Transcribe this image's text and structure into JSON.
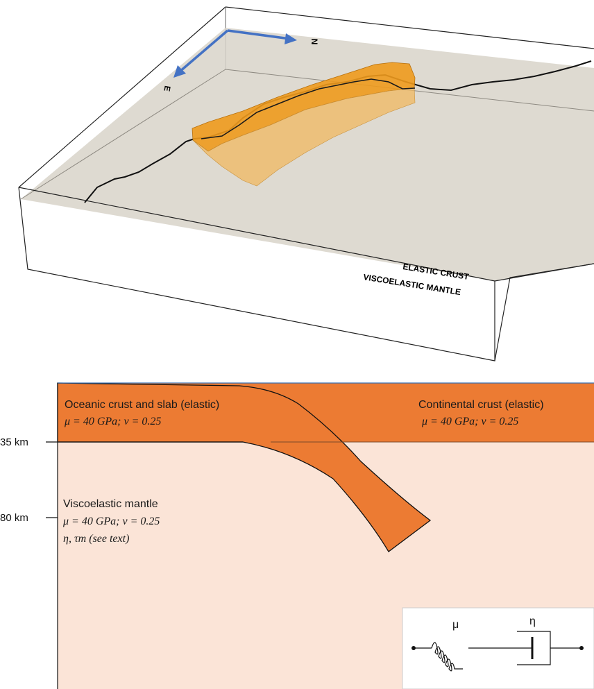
{
  "top_panel": {
    "axis_north": "N",
    "axis_east": "E",
    "layer_upper": "ELASTIC CRUST",
    "layer_lower": "VISCOELASTIC MANTLE"
  },
  "bottom_panel": {
    "oceanic": {
      "title": "Oceanic crust and slab (elastic)",
      "params": "μ = 40 GPa;   ν = 0.25"
    },
    "continental": {
      "title": "Continental crust (elastic)",
      "params": "μ = 40 GPa;   ν = 0.25"
    },
    "mantle": {
      "title": "Viscoelastic mantle",
      "params": "μ = 40 GPa;   ν = 0.25",
      "extra": "η, τm (see text)"
    },
    "depth_ticks": [
      "35 km",
      "80 km"
    ],
    "maxwell": {
      "spring_label": "μ",
      "dashpot_label": "η"
    }
  },
  "colors": {
    "crust_orange": "#ec7b33",
    "mantle_peach": "#fbe4d7",
    "slab_3d": "#ee9a1d",
    "plane_gray": "#d8d4c9",
    "axis_blue": "#4472c4"
  }
}
